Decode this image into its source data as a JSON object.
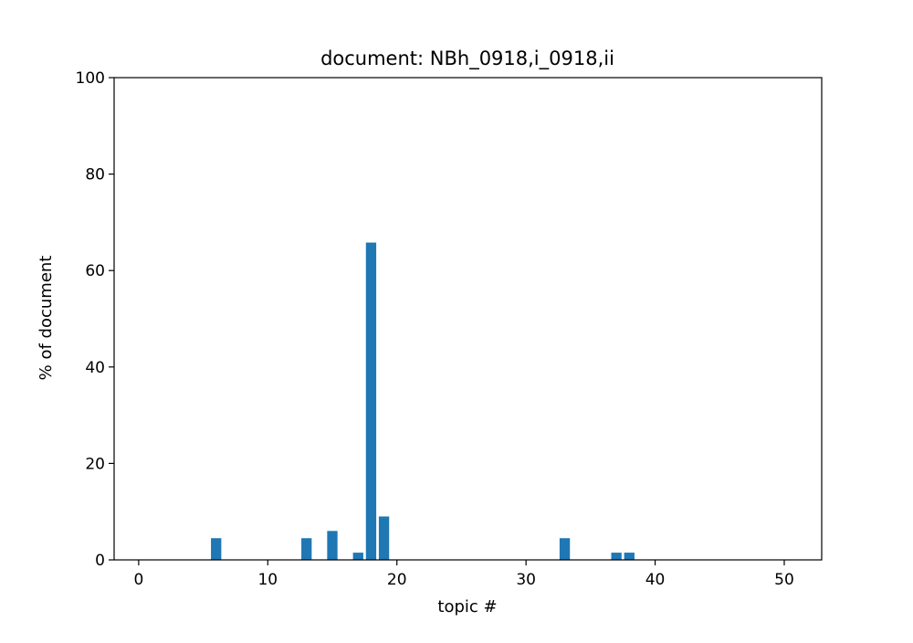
{
  "chart_data": {
    "type": "bar",
    "title": "document: NBh_0918,i_0918,ii",
    "xlabel": "topic #",
    "ylabel": "% of document",
    "xlim": [
      -1.9,
      52.9
    ],
    "ylim": [
      0,
      100
    ],
    "xticks": [
      0,
      10,
      20,
      30,
      40,
      50
    ],
    "yticks": [
      0,
      20,
      40,
      60,
      80,
      100
    ],
    "grid": false,
    "bar_color": "#1f77b4",
    "bar_width": 0.8,
    "x": [
      0,
      1,
      2,
      3,
      4,
      5,
      6,
      7,
      8,
      9,
      10,
      11,
      12,
      13,
      14,
      15,
      16,
      17,
      18,
      19,
      20,
      21,
      22,
      23,
      24,
      25,
      26,
      27,
      28,
      29,
      30,
      31,
      32,
      33,
      34,
      35,
      36,
      37,
      38,
      39,
      40,
      41,
      42,
      43,
      44,
      45,
      46,
      47,
      48,
      49,
      50
    ],
    "values": [
      0,
      0,
      0,
      0,
      0,
      0,
      4.5,
      0,
      0,
      0,
      0,
      0,
      0,
      4.5,
      0,
      6,
      0,
      1.5,
      65.8,
      9,
      0,
      0,
      0,
      0,
      0,
      0,
      0,
      0,
      0,
      0,
      0,
      0,
      0,
      4.5,
      0,
      0,
      0,
      1.5,
      1.5,
      0,
      0,
      0,
      0,
      0,
      0,
      0,
      0,
      0,
      0,
      0,
      0
    ]
  }
}
